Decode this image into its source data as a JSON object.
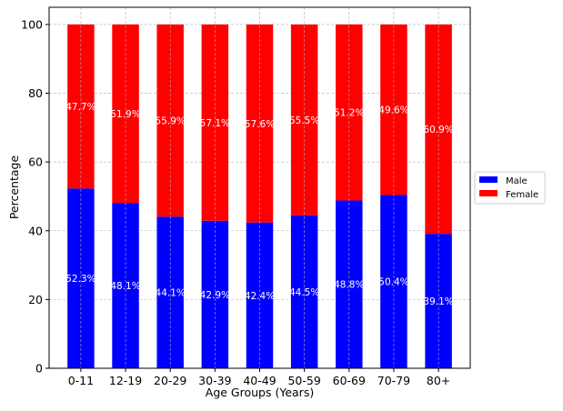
{
  "chart_data": {
    "type": "bar",
    "stacked": true,
    "title": "",
    "xlabel": "Age Groups (Years)",
    "ylabel": "Percentage",
    "categories": [
      "0-11",
      "12-19",
      "20-29",
      "30-39",
      "40-49",
      "50-59",
      "60-69",
      "70-79",
      "80+"
    ],
    "series": [
      {
        "name": "Male",
        "color": "#0000ff",
        "values": [
          52.3,
          48.1,
          44.1,
          42.9,
          42.4,
          44.5,
          48.8,
          50.4,
          39.1
        ],
        "labels": [
          "52.3%",
          "48.1%",
          "44.1%",
          "42.9%",
          "42.4%",
          "44.5%",
          "48.8%",
          "50.4%",
          "39.1%"
        ]
      },
      {
        "name": "Female",
        "color": "#ff0000",
        "values": [
          47.7,
          51.9,
          55.9,
          57.1,
          57.6,
          55.5,
          51.2,
          49.6,
          60.9
        ],
        "labels": [
          "47.7%",
          "51.9%",
          "55.9%",
          "57.1%",
          "57.6%",
          "55.5%",
          "51.2%",
          "49.6%",
          "60.9%"
        ]
      }
    ],
    "ylim": [
      0,
      105
    ],
    "yticks": [
      "0",
      "20",
      "40",
      "60",
      "80",
      "100"
    ],
    "grid": true,
    "legend": "right"
  }
}
